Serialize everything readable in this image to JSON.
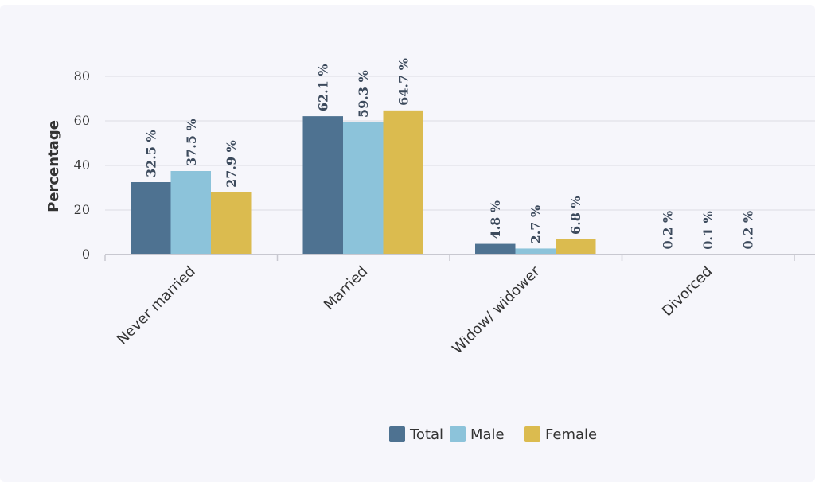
{
  "chart_data": {
    "type": "bar",
    "title": "",
    "xlabel": "",
    "ylabel": "Percentage",
    "ylim": [
      0,
      80
    ],
    "yticks": [
      0,
      20,
      40,
      60,
      80
    ],
    "grid": true,
    "legend_position": "bottom",
    "categories": [
      "Never married",
      "Married",
      "Widow/ widower",
      "Divorced"
    ],
    "series": [
      {
        "name": "Total",
        "color": "#4e7291",
        "values": [
          32.5,
          62.1,
          4.8,
          0.2
        ],
        "labels": [
          "32.5 %",
          "62.1 %",
          "4.8 %",
          "0.2 %"
        ]
      },
      {
        "name": "Male",
        "color": "#8cc3da",
        "values": [
          37.5,
          59.3,
          2.7,
          0.1
        ],
        "labels": [
          "37.5 %",
          "59.3 %",
          "2.7 %",
          "0.1 %"
        ]
      },
      {
        "name": "Female",
        "color": "#dbbb4f",
        "values": [
          27.9,
          64.7,
          6.8,
          0.2
        ],
        "labels": [
          "27.9 %",
          "64.7 %",
          "6.8 %",
          "0.2 %"
        ]
      }
    ]
  }
}
